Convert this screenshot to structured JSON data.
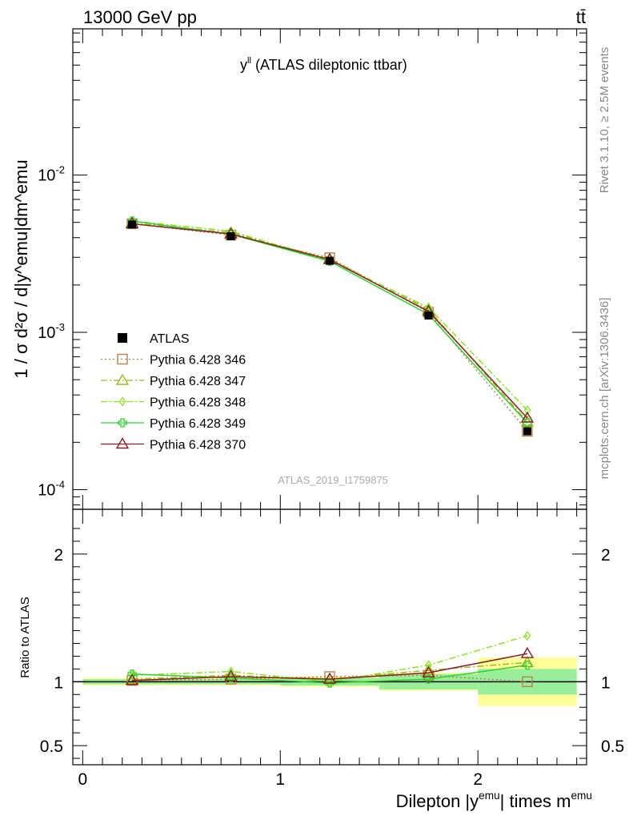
{
  "header": {
    "energy_label": "13000 GeV pp",
    "process_label": "tt̄"
  },
  "side_labels": {
    "rivet": "Rivet 3.1.10, ≥ 2.5M events",
    "mcplots": "mcplots.cern.ch [arXiv:1306.3436]"
  },
  "chart_data": {
    "type": "line",
    "title": "y^ll (ATLAS dileptonic ttbar)",
    "analysis_id": "ATLAS_2019_I1759875",
    "xlabel": "Dilepton |y^emu| times m^emu",
    "ylabel_main": "1 / σ d²σ / d|y^emu|dm^emu",
    "ylabel_ratio": "Ratio to ATLAS",
    "xlim": [
      -0.05,
      2.55
    ],
    "ylim_main": [
      7.5e-05,
      0.085
    ],
    "ylim_ratio": [
      0.35,
      2.35
    ],
    "y_scale_main": "log",
    "x_ticks": [
      "0",
      "1",
      "2"
    ],
    "y_ticks_main": [
      "10^-2",
      "10^-3",
      "10^-4"
    ],
    "y_ticks_ratio": [
      "2",
      "1",
      "0.5"
    ],
    "legend_position": "lower-left",
    "bins": [
      [
        0.0,
        0.5
      ],
      [
        0.5,
        1.0
      ],
      [
        1.0,
        1.5
      ],
      [
        1.5,
        2.0
      ],
      [
        2.0,
        2.5
      ]
    ],
    "x": [
      0.25,
      0.75,
      1.25,
      1.75,
      2.25
    ],
    "data": {
      "name": "ATLAS",
      "values": [
        0.00485,
        0.00408,
        0.00285,
        0.00128,
        0.000235
      ],
      "band_inner": [
        0.02,
        0.02,
        0.03,
        0.06,
        0.1
      ],
      "band_outer": [
        0.03,
        0.03,
        0.04,
        0.07,
        0.19
      ]
    },
    "series": [
      {
        "name": "Pythia 6.428 346",
        "color": "#b8824a",
        "style": "dotted",
        "marker": "square",
        "values": [
          0.0049,
          0.00415,
          0.00298,
          0.00134,
          0.000235
        ],
        "ratio": [
          1.01,
          1.02,
          1.04,
          1.05,
          1.0
        ]
      },
      {
        "name": "Pythia 6.428 347",
        "color": "#9fb81a",
        "style": "dashdot",
        "marker": "triangle",
        "values": [
          0.00495,
          0.0043,
          0.00292,
          0.0014,
          0.00027
        ],
        "ratio": [
          1.02,
          1.05,
          1.02,
          1.09,
          1.15
        ]
      },
      {
        "name": "Pythia 6.428 348",
        "color": "#86e61e",
        "style": "dashdot",
        "marker": "diamond",
        "values": [
          0.0051,
          0.0044,
          0.00285,
          0.00144,
          0.00032
        ],
        "ratio": [
          1.05,
          1.08,
          1.0,
          1.13,
          1.36
        ]
      },
      {
        "name": "Pythia 6.428 349",
        "color": "#2ed12e",
        "style": "solid",
        "marker": "cross",
        "values": [
          0.0051,
          0.0042,
          0.00283,
          0.0013,
          0.000265
        ],
        "ratio": [
          1.06,
          1.03,
          0.99,
          1.02,
          1.13
        ]
      },
      {
        "name": "Pythia 6.428 370",
        "color": "#8b1c24",
        "style": "solid",
        "marker": "triangle",
        "values": [
          0.0049,
          0.00422,
          0.0029,
          0.00136,
          0.000285
        ],
        "ratio": [
          1.01,
          1.04,
          1.02,
          1.07,
          1.22
        ]
      }
    ]
  }
}
